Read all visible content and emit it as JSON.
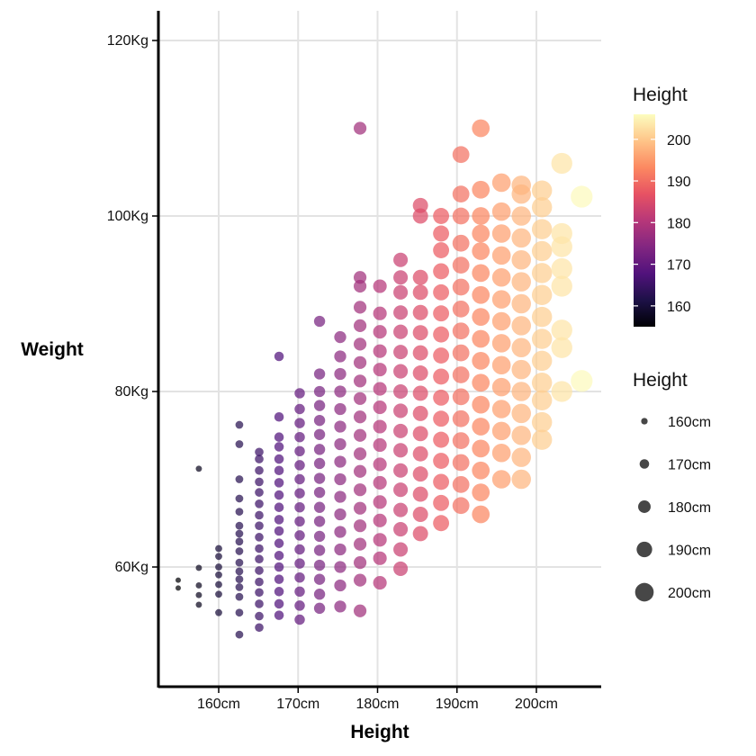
{
  "chart_data": {
    "type": "scatter",
    "title": "",
    "xlabel": "Height",
    "ylabel": "Weight",
    "xlim": [
      152,
      208
    ],
    "ylim": [
      47,
      124
    ],
    "x_ticks": [
      {
        "value": 160,
        "label": "160cm"
      },
      {
        "value": 170,
        "label": "170cm"
      },
      {
        "value": 180,
        "label": "180cm"
      },
      {
        "value": 190,
        "label": "190cm"
      },
      {
        "value": 200,
        "label": "200cm"
      }
    ],
    "y_ticks": [
      {
        "value": 60,
        "label": "60Kg"
      },
      {
        "value": 80,
        "label": "80Kg"
      },
      {
        "value": 100,
        "label": "100Kg"
      },
      {
        "value": 120,
        "label": "120Kg"
      }
    ],
    "grid": true,
    "color_legend": {
      "title": "Height",
      "position": "right",
      "palette": "magma",
      "range": [
        155,
        206
      ],
      "ticks": [
        160,
        170,
        180,
        190,
        200
      ],
      "colors": [
        "#000004",
        "#1d1147",
        "#51127c",
        "#822681",
        "#b73779",
        "#e75263",
        "#fc8961",
        "#fec488",
        "#fcfdbf"
      ]
    },
    "size_legend": {
      "title": "Height",
      "position": "right",
      "items": [
        {
          "value": 160,
          "label": "160cm"
        },
        {
          "value": 170,
          "label": "170cm"
        },
        {
          "value": 180,
          "label": "180cm"
        },
        {
          "value": 190,
          "label": "190cm"
        },
        {
          "value": 200,
          "label": "200cm"
        }
      ]
    },
    "columns": [
      {
        "x": 154.9,
        "weights": [
          57.6,
          58.5
        ]
      },
      {
        "x": 157.5,
        "weights": [
          55.7,
          56.8,
          57.9,
          59.9,
          71.2
        ]
      },
      {
        "x": 160.0,
        "weights": [
          54.8,
          56.9,
          58.0,
          59.1,
          60.0,
          61.2,
          62.1
        ]
      },
      {
        "x": 162.6,
        "weights": [
          52.3,
          54.8,
          56.6,
          57.7,
          58.6,
          59.5,
          60.5,
          61.8,
          62.9,
          63.8,
          64.7,
          66.3,
          67.8,
          70.0,
          74.0,
          76.2
        ]
      },
      {
        "x": 165.1,
        "weights": [
          53.1,
          54.4,
          55.8,
          57.1,
          58.3,
          59.6,
          60.9,
          62.1,
          63.4,
          64.7,
          65.9,
          67.2,
          68.5,
          69.7,
          71.0,
          72.3,
          73.1
        ]
      },
      {
        "x": 167.6,
        "weights": [
          54.5,
          55.8,
          57.2,
          58.6,
          60.0,
          61.3,
          62.7,
          64.1,
          65.4,
          66.8,
          68.2,
          69.6,
          71.0,
          72.3,
          73.7,
          74.8,
          77.1,
          84.0
        ]
      },
      {
        "x": 170.2,
        "weights": [
          54.0,
          55.6,
          57.2,
          58.8,
          60.4,
          62.0,
          63.6,
          65.2,
          66.8,
          68.4,
          70.0,
          71.6,
          73.2,
          74.8,
          76.4,
          78.0,
          79.8
        ]
      },
      {
        "x": 172.7,
        "weights": [
          55.3,
          56.9,
          58.6,
          60.2,
          61.9,
          63.5,
          65.2,
          66.8,
          68.5,
          70.1,
          71.8,
          73.4,
          75.1,
          76.7,
          78.4,
          80.0,
          82.0,
          88.0
        ]
      },
      {
        "x": 175.3,
        "weights": [
          55.5,
          57.9,
          60.0,
          62.0,
          64.0,
          66.0,
          68.0,
          70.0,
          72.0,
          74.0,
          76.0,
          78.0,
          80.0,
          82.0,
          84.0,
          86.2
        ]
      },
      {
        "x": 177.8,
        "weights": [
          55.0,
          58.5,
          60.5,
          62.6,
          64.7,
          66.7,
          68.8,
          70.9,
          72.9,
          75.0,
          77.1,
          79.2,
          81.2,
          83.3,
          85.4,
          87.5,
          89.6,
          92.0,
          93.0,
          110.0
        ]
      },
      {
        "x": 180.3,
        "weights": [
          58.2,
          61.0,
          63.1,
          65.3,
          67.4,
          69.6,
          71.7,
          73.9,
          76.0,
          78.2,
          80.3,
          82.5,
          84.6,
          86.8,
          88.9,
          92.0
        ]
      },
      {
        "x": 182.9,
        "weights": [
          59.8,
          62.0,
          64.3,
          66.5,
          68.8,
          71.0,
          73.3,
          75.5,
          77.8,
          80.0,
          82.3,
          84.5,
          86.8,
          89.0,
          91.3,
          93.0,
          95.0
        ]
      },
      {
        "x": 185.4,
        "weights": [
          63.8,
          66.0,
          68.3,
          70.6,
          72.9,
          75.2,
          77.5,
          79.8,
          82.1,
          84.4,
          86.7,
          89.0,
          91.3,
          93.0,
          100.0,
          101.2
        ]
      },
      {
        "x": 188.0,
        "weights": [
          65.0,
          67.3,
          69.7,
          72.1,
          74.5,
          76.9,
          79.3,
          81.7,
          84.1,
          86.5,
          88.9,
          91.3,
          93.7,
          96.1,
          98.0,
          100.0
        ]
      },
      {
        "x": 190.5,
        "weights": [
          67.0,
          69.4,
          71.9,
          74.4,
          76.9,
          79.4,
          81.9,
          84.4,
          86.9,
          89.4,
          91.9,
          94.4,
          96.9,
          100.0,
          102.5,
          107.0
        ]
      },
      {
        "x": 193.0,
        "weights": [
          66.0,
          68.5,
          71.0,
          73.5,
          76.0,
          78.5,
          81.0,
          83.5,
          86.0,
          88.5,
          91.0,
          93.5,
          96.0,
          98.0,
          100.0,
          103.0,
          110.0
        ]
      },
      {
        "x": 195.6,
        "weights": [
          70.0,
          73.0,
          75.5,
          78.0,
          80.5,
          83.0,
          85.5,
          88.0,
          90.5,
          93.0,
          95.5,
          98.0,
          100.5,
          103.8
        ]
      },
      {
        "x": 198.1,
        "weights": [
          70.0,
          72.5,
          75.0,
          77.5,
          80.0,
          82.5,
          85.0,
          87.5,
          90.0,
          92.5,
          95.0,
          97.5,
          100.0,
          102.5,
          103.5
        ]
      },
      {
        "x": 200.7,
        "weights": [
          74.5,
          76.5,
          79.0,
          81.0,
          83.5,
          86.0,
          88.5,
          91.0,
          93.5,
          96.0,
          98.5,
          101.0,
          102.9
        ]
      },
      {
        "x": 203.2,
        "weights": [
          80.0,
          85.0,
          87.0,
          92.0,
          94.0,
          96.5,
          98.0,
          106.0
        ]
      },
      {
        "x": 205.7,
        "weights": [
          81.2,
          102.2
        ]
      }
    ]
  }
}
